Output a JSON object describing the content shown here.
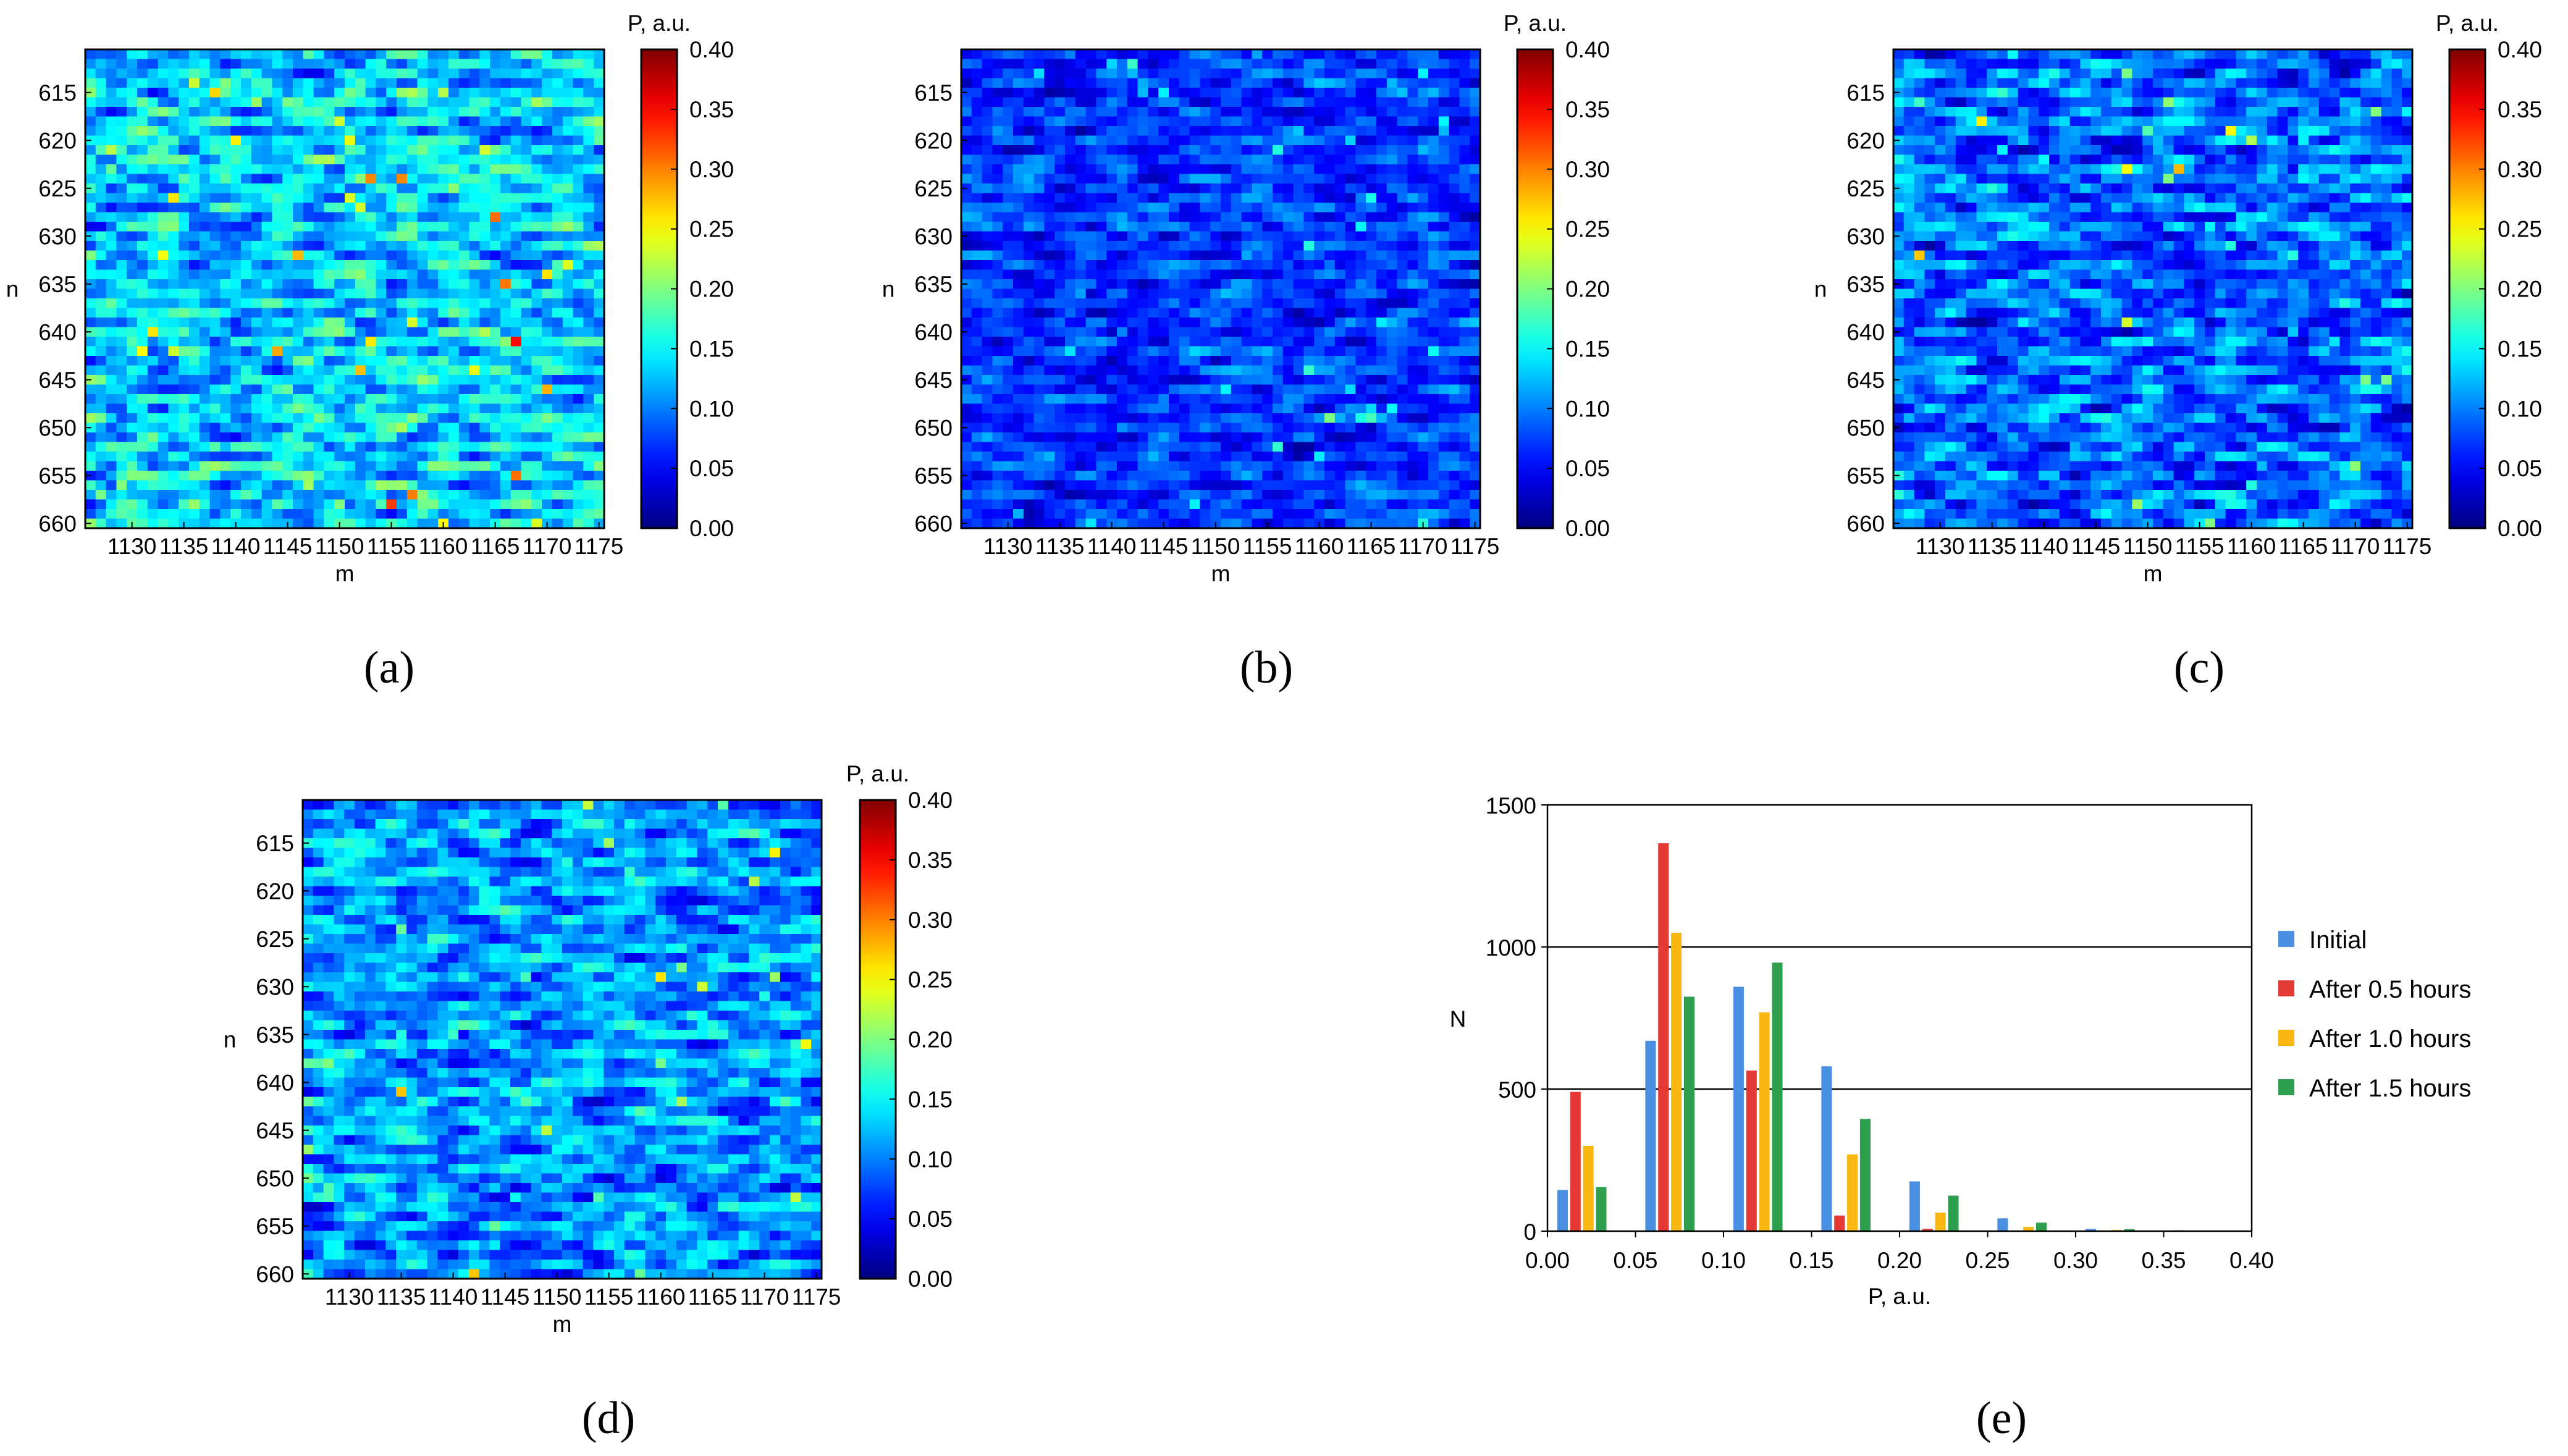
{
  "colors": {
    "initial": "#4a90e2",
    "after_0_5": "#e53935",
    "after_1_0": "#f9b712",
    "after_1_5": "#2e9e4f",
    "gridline": "#000000"
  },
  "chart_data": [
    {
      "type": "heatmap",
      "panel": "(a)",
      "xlabel": "m",
      "ylabel": "n",
      "colorbar_title": "P, a.u.",
      "colorbar_ticks": [
        "0.00",
        "0.05",
        "0.10",
        "0.15",
        "0.20",
        "0.25",
        "0.30",
        "0.35",
        "0.40"
      ],
      "x_ticks": [
        "1130",
        "1135",
        "1140",
        "1145",
        "1150",
        "1155",
        "1160",
        "1165",
        "1170",
        "1175"
      ],
      "y_ticks": [
        "615",
        "620",
        "625",
        "630",
        "635",
        "640",
        "645",
        "650",
        "655",
        "660"
      ],
      "x_range": [
        1126,
        1175
      ],
      "y_range": [
        611,
        660
      ],
      "value_range": [
        0.0,
        0.4
      ],
      "mean": 0.13,
      "spread": 0.06,
      "seed": 11
    },
    {
      "type": "heatmap",
      "panel": "(b)",
      "xlabel": "m",
      "ylabel": "n",
      "colorbar_title": "P, a.u.",
      "colorbar_ticks": [
        "0.00",
        "0.05",
        "0.10",
        "0.15",
        "0.20",
        "0.25",
        "0.30",
        "0.35",
        "0.40"
      ],
      "x_ticks": [
        "1130",
        "1135",
        "1140",
        "1145",
        "1150",
        "1155",
        "1160",
        "1165",
        "1170",
        "1175"
      ],
      "y_ticks": [
        "615",
        "620",
        "625",
        "630",
        "635",
        "640",
        "645",
        "650",
        "655",
        "660"
      ],
      "x_range": [
        1126,
        1175
      ],
      "y_range": [
        611,
        660
      ],
      "value_range": [
        0.0,
        0.4
      ],
      "mean": 0.07,
      "spread": 0.04,
      "seed": 23
    },
    {
      "type": "heatmap",
      "panel": "(c)",
      "xlabel": "m",
      "ylabel": "n",
      "colorbar_title": "P, a.u.",
      "colorbar_ticks": [
        "0.00",
        "0.05",
        "0.10",
        "0.15",
        "0.20",
        "0.25",
        "0.30",
        "0.35",
        "0.40"
      ],
      "x_ticks": [
        "1130",
        "1135",
        "1140",
        "1145",
        "1150",
        "1155",
        "1160",
        "1165",
        "1170",
        "1175"
      ],
      "y_ticks": [
        "615",
        "620",
        "625",
        "630",
        "635",
        "640",
        "645",
        "650",
        "655",
        "660"
      ],
      "x_range": [
        1126,
        1175
      ],
      "y_range": [
        611,
        660
      ],
      "value_range": [
        0.0,
        0.4
      ],
      "mean": 0.09,
      "spread": 0.055,
      "seed": 37
    },
    {
      "type": "heatmap",
      "panel": "(d)",
      "xlabel": "m",
      "ylabel": "n",
      "colorbar_title": "P, a.u.",
      "colorbar_ticks": [
        "0.00",
        "0.05",
        "0.10",
        "0.15",
        "0.20",
        "0.25",
        "0.30",
        "0.35",
        "0.40"
      ],
      "x_ticks": [
        "1130",
        "1135",
        "1140",
        "1145",
        "1150",
        "1155",
        "1160",
        "1165",
        "1170",
        "1175"
      ],
      "y_ticks": [
        "615",
        "620",
        "625",
        "630",
        "635",
        "640",
        "645",
        "650",
        "655",
        "660"
      ],
      "x_range": [
        1126,
        1175
      ],
      "y_range": [
        611,
        660
      ],
      "value_range": [
        0.0,
        0.4
      ],
      "mean": 0.11,
      "spread": 0.055,
      "seed": 53
    },
    {
      "type": "bar",
      "panel": "(e)",
      "xlabel": "P, a.u.",
      "ylabel": "N",
      "ylim": [
        0,
        1500
      ],
      "y_ticks": [
        "0",
        "500",
        "1000",
        "1500"
      ],
      "y_gridlines": [
        500,
        1000
      ],
      "x_ticks": [
        "0.00",
        "0.05",
        "0.10",
        "0.15",
        "0.20",
        "0.25",
        "0.30",
        "0.35",
        "0.40"
      ],
      "xlim": [
        0.0,
        0.4
      ],
      "bin_centers": [
        0.025,
        0.075,
        0.125,
        0.175,
        0.225,
        0.275,
        0.325,
        0.375
      ],
      "series": [
        {
          "name": "Initial",
          "values": [
            145,
            670,
            860,
            580,
            175,
            45,
            8,
            3
          ]
        },
        {
          "name": "After 0.5 hours",
          "values": [
            490,
            1365,
            565,
            55,
            8,
            2,
            1,
            0
          ]
        },
        {
          "name": "After 1.0 hours",
          "values": [
            300,
            1050,
            770,
            270,
            65,
            15,
            4,
            1
          ]
        },
        {
          "name": "After 1.5 hours",
          "values": [
            155,
            825,
            945,
            395,
            125,
            30,
            7,
            2
          ]
        }
      ]
    }
  ]
}
